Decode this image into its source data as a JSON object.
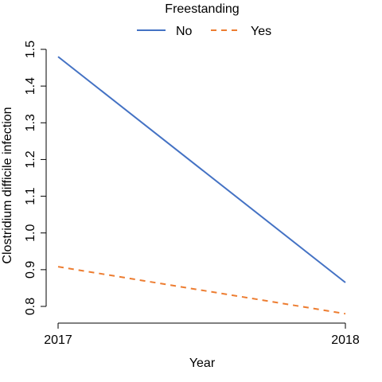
{
  "chart_data": {
    "type": "line",
    "xlabel": "Year",
    "ylabel": "Clostridium difficile infection",
    "x": [
      2017,
      2018
    ],
    "x_ticks": [
      "2017",
      "2018"
    ],
    "ylim": [
      0.78,
      1.5
    ],
    "y_ticks": [
      "0.8",
      "0.9",
      "1.0",
      "1.1",
      "1.2",
      "1.3",
      "1.4",
      "1.5"
    ],
    "grid": false,
    "legend": {
      "title": "Freestanding",
      "placement": "top-center"
    },
    "series": [
      {
        "name": "No",
        "values": [
          1.48,
          0.865
        ],
        "color": "#4472C4",
        "dash": "solid"
      },
      {
        "name": "Yes",
        "values": [
          0.908,
          0.78
        ],
        "color": "#ED7D31",
        "dash": "dashed"
      }
    ]
  }
}
